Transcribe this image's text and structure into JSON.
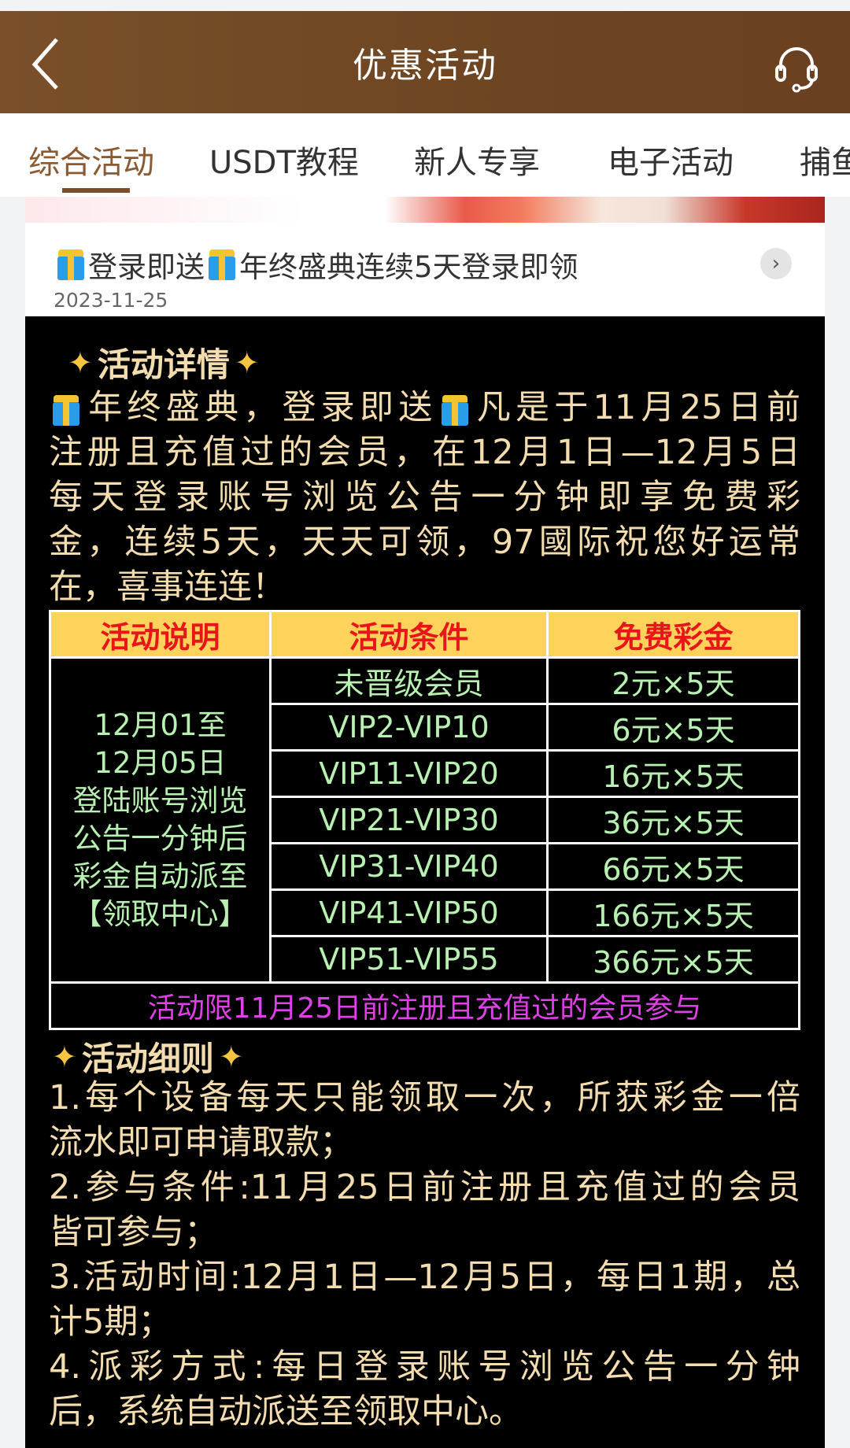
{
  "header": {
    "title": "优惠活动",
    "back_icon": "chevron-left-icon",
    "support_icon": "headset-icon"
  },
  "tabs": [
    {
      "label": "综合活动",
      "active": true
    },
    {
      "label": "USDT教程"
    },
    {
      "label": "新人专享"
    },
    {
      "label": "电子活动"
    },
    {
      "label": "捕鱼"
    }
  ],
  "card": {
    "title_seg1": "登录即送",
    "title_seg2": "年终盛典连续5天登录即领",
    "date": "2023-11-25"
  },
  "details": {
    "title": "活动详情",
    "line1_a": "年终盛典，登录即送",
    "line1_b": "凡是于11月25日前",
    "lines": [
      "注册且充值过的会员，在12月1日—12月5日",
      "每天登录账号浏览公告一分钟即享免费彩",
      "金，连续5天，天天可领，97國际祝您好运常",
      "在，喜事连连！"
    ]
  },
  "table": {
    "headers": [
      "活动说明",
      "活动条件",
      "免费彩金"
    ],
    "desc_lines": [
      "12月01至",
      "12月05日",
      "登陆账号浏览",
      "公告一分钟后",
      "彩金自动派至",
      "【领取中心】"
    ],
    "rows": [
      [
        "未晋级会员",
        "2元×5天"
      ],
      [
        "VIP2-VIP10",
        "6元×5天"
      ],
      [
        "VIP11-VIP20",
        "16元×5天"
      ],
      [
        "VIP21-VIP30",
        "36元×5天"
      ],
      [
        "VIP31-VIP40",
        "66元×5天"
      ],
      [
        "VIP41-VIP50",
        "166元×5天"
      ],
      [
        "VIP51-VIP55",
        "366元×5天"
      ]
    ],
    "footer": "活动限11月25日前注册且充值过的会员参与"
  },
  "rules": {
    "title": "活动细则",
    "lines": [
      "1.每个设备每天只能领取一次，所获彩金一倍",
      "流水即可申请取款；",
      "2.参与条件:11月25日前注册且充值过的会员",
      "皆可参与；",
      "3.活动时间:12月1日—12月5日，每日1期，总",
      "计5期；",
      "4.派彩方式:每日登录账号浏览公告一分钟",
      "后，系统自动派送至领取中心。"
    ]
  },
  "colors": {
    "header": "#6e4522",
    "accent": "#8a5a32",
    "text_gold": "#f3dcae",
    "cell_green": "#b7f0b1",
    "head_yellow": "#fdd35c",
    "head_red": "#e8151b",
    "footer_magenta": "#e040e8"
  }
}
